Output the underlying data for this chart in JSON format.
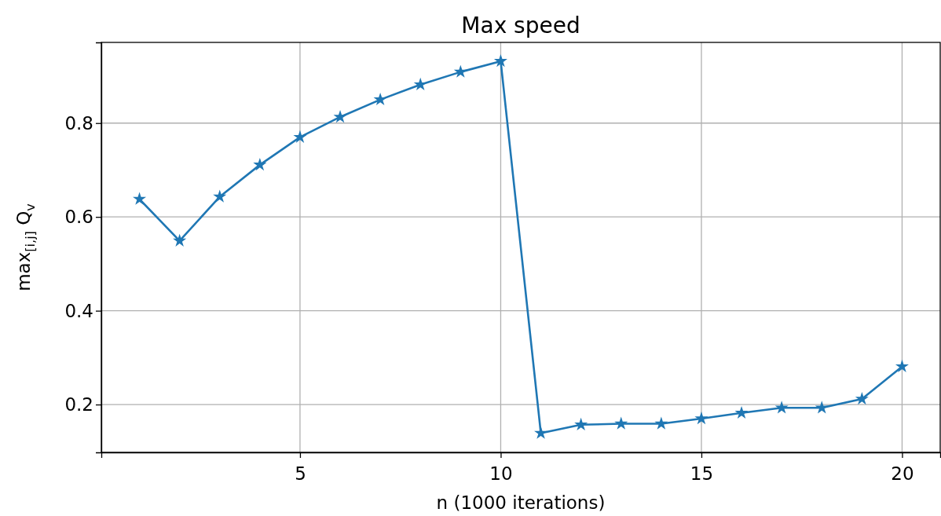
{
  "chart_data": {
    "type": "line",
    "title": "Max speed",
    "xlabel": "n (1000 iterations)",
    "ylabel": "max$_{[i,j]}$ Q$_{v}$",
    "x": [
      1,
      2,
      3,
      4,
      5,
      6,
      7,
      8,
      9,
      10,
      11,
      12,
      13,
      14,
      15,
      16,
      17,
      18,
      19,
      20
    ],
    "series": [
      {
        "color": "#1f77b4",
        "values": [
          0.638,
          0.549,
          0.643,
          0.711,
          0.77,
          0.813,
          0.85,
          0.882,
          0.909,
          0.932,
          0.139,
          0.157,
          0.159,
          0.159,
          0.17,
          0.182,
          0.193,
          0.193,
          0.212,
          0.281
        ]
      }
    ],
    "xlim": [
      0.05,
      20.95
    ],
    "xticks": [
      5,
      10,
      15,
      20
    ],
    "ylim": [
      0.098,
      0.972
    ],
    "yticks": [
      0.2,
      0.4,
      0.6,
      0.8
    ],
    "grid": true,
    "marker": "star",
    "line_style": "solid"
  }
}
